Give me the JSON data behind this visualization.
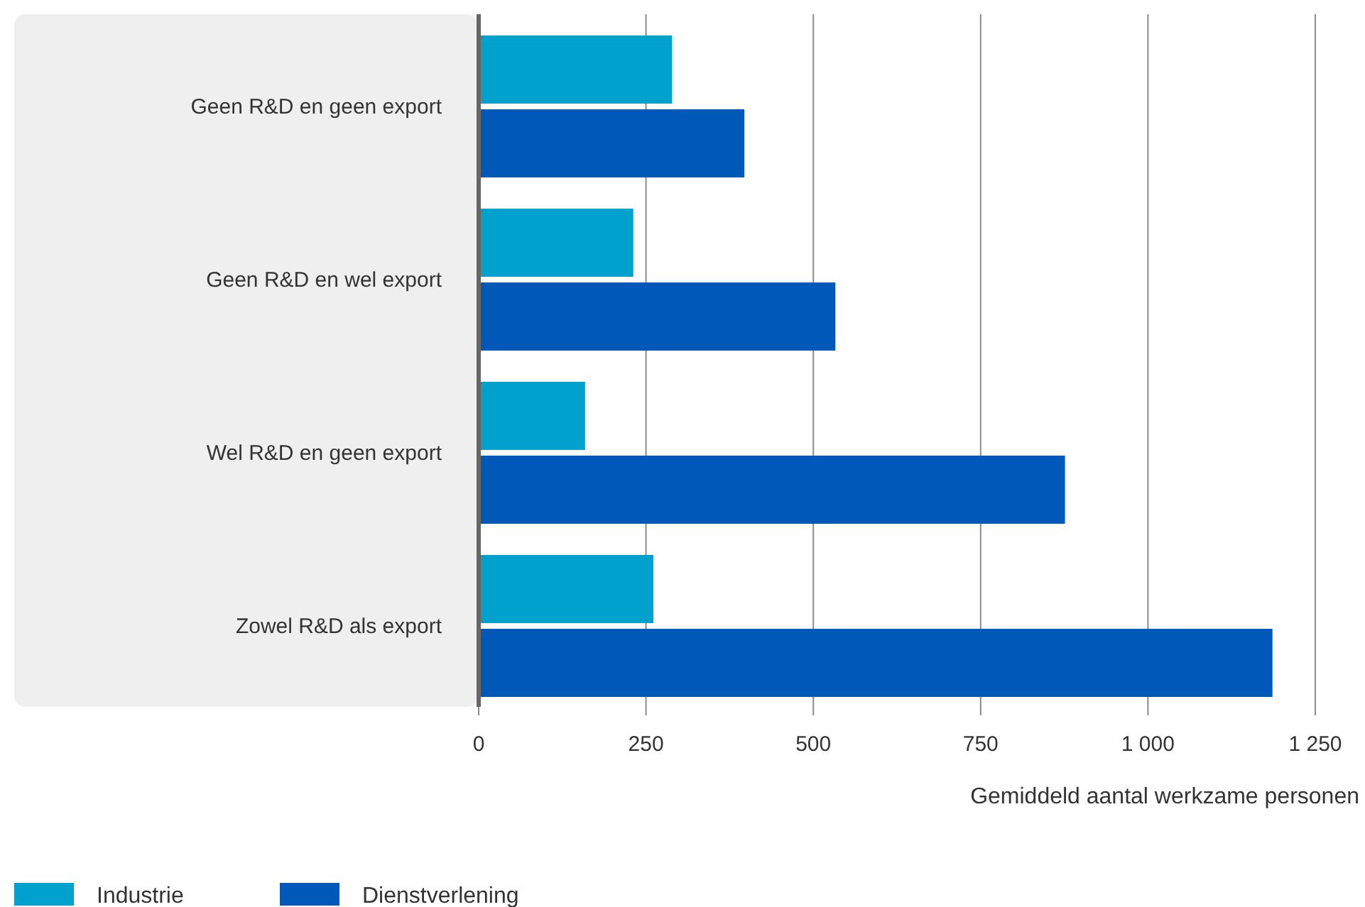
{
  "chart_data": {
    "type": "bar",
    "orientation": "horizontal",
    "xlabel": "Gemiddeld aantal werkzame personen",
    "categories": [
      "Geen R&D en geen export",
      "Geen R&D en wel export",
      "Wel R&D en geen export",
      "Zowel R&D als export"
    ],
    "series": [
      {
        "name": "Industrie",
        "color": "#00a1cd",
        "values": [
          289,
          231,
          159,
          261
        ]
      },
      {
        "name": "Dienstverlening",
        "color": "#0058b8",
        "values": [
          397,
          533,
          876,
          1186
        ]
      }
    ],
    "xlim": [
      0,
      1250
    ],
    "xticks": [
      0,
      250,
      500,
      750,
      {
        "value": 1000,
        "label": "1 000"
      },
      {
        "value": 1250,
        "label": "1 250"
      }
    ],
    "grid": "x",
    "legend": "bottom left"
  }
}
